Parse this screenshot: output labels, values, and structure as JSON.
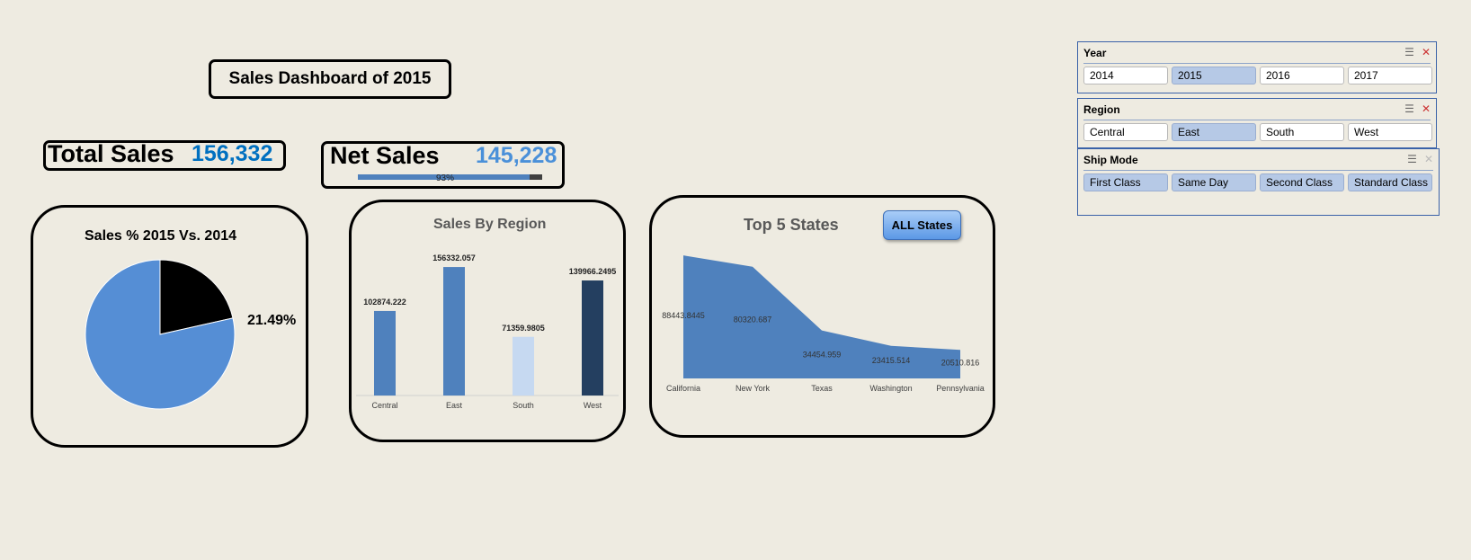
{
  "dashboard": {
    "title": "Sales Dashboard of 2015"
  },
  "kpis": {
    "total_sales": {
      "label": "Total Sales",
      "value": "156,332"
    },
    "net_sales": {
      "label": "Net Sales",
      "value": "145,228",
      "progress_label": "93%",
      "progress": 0.93
    }
  },
  "colors": {
    "accent_blue": "#0070c0",
    "net_blue": "#4a90d9",
    "pie_blue": "#558ed5",
    "bar_blue": "#4f81bd",
    "bar_light": "#c6d9f1",
    "bar_dark": "#243f60"
  },
  "pie_panel": {
    "title": "Sales % 2015 Vs. 2014",
    "pct_label": "21.49%"
  },
  "bar_panel": {
    "title": "Sales By Region"
  },
  "area_panel": {
    "title": "Top 5 States",
    "button": "ALL States"
  },
  "chart_data": [
    {
      "type": "pie",
      "title": "Sales % 2015 Vs. 2014",
      "slices": [
        {
          "value": 21.49,
          "color": "#000000"
        },
        {
          "value": 78.51,
          "color": "#558ed5"
        }
      ],
      "annotation": "21.49%"
    },
    {
      "type": "bar",
      "title": "Sales By Region",
      "categories": [
        "Central",
        "East",
        "South",
        "West"
      ],
      "values": [
        102874.222,
        156332.057,
        71359.9805,
        139966.2495
      ],
      "value_labels": [
        "102874.222",
        "156332.057",
        "71359.9805",
        "139966.2495"
      ],
      "colors": [
        "#4f81bd",
        "#4f81bd",
        "#c6d9f1",
        "#243f60"
      ],
      "ylim": [
        0,
        175000
      ]
    },
    {
      "type": "area",
      "title": "Top 5 States",
      "categories": [
        "California",
        "New York",
        "Texas",
        "Washington",
        "Pennsylvania"
      ],
      "values": [
        88443.8445,
        80320.687,
        34454.959,
        23415.514,
        20510.816
      ],
      "value_labels": [
        "88443.8445",
        "80320.687",
        "34454.959",
        "23415.514",
        "20510.816"
      ],
      "ylim": [
        0,
        95000
      ]
    }
  ],
  "slicers": [
    {
      "title": "Year",
      "items": [
        {
          "label": "2014",
          "selected": false
        },
        {
          "label": "2015",
          "selected": true
        },
        {
          "label": "2016",
          "selected": false
        },
        {
          "label": "2017",
          "selected": false
        }
      ]
    },
    {
      "title": "Region",
      "items": [
        {
          "label": "Central",
          "selected": false
        },
        {
          "label": "East",
          "selected": true
        },
        {
          "label": "South",
          "selected": false
        },
        {
          "label": "West",
          "selected": false
        }
      ]
    },
    {
      "title": "Ship Mode",
      "items": [
        {
          "label": "First Class",
          "selected": true
        },
        {
          "label": "Same Day",
          "selected": true
        },
        {
          "label": "Second Class",
          "selected": true
        },
        {
          "label": "Standard Class",
          "selected": true
        }
      ]
    }
  ]
}
